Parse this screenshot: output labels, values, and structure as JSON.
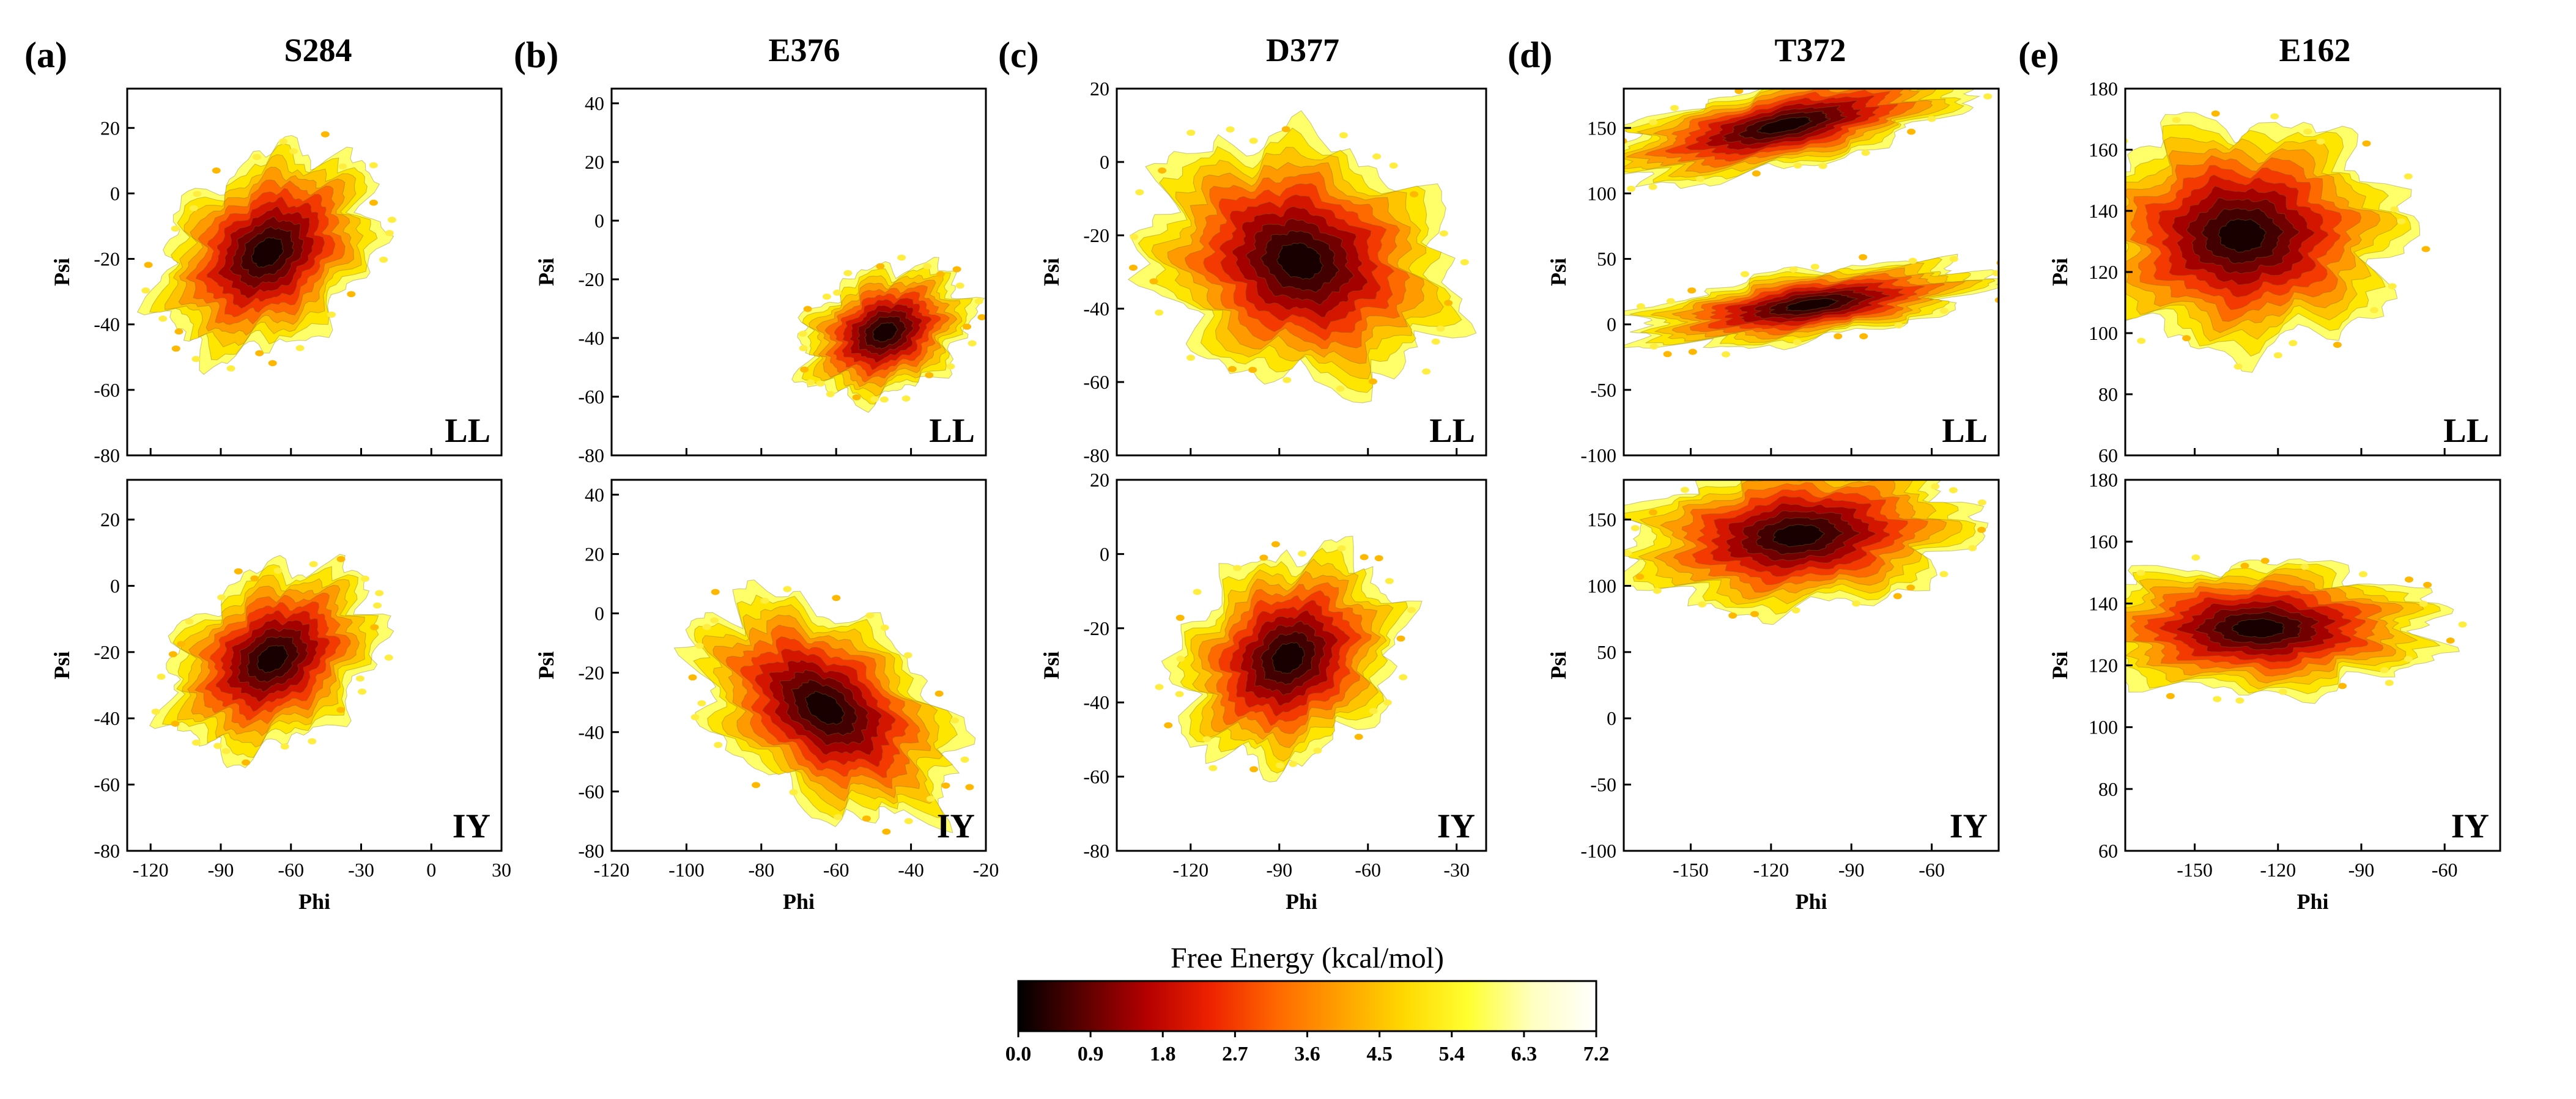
{
  "chart_data": {
    "type": "heatmap",
    "description": "Free energy landscapes (Phi/Psi) for LL and IY variants",
    "colorbar": {
      "title": "Free Energy (kcal/mol)",
      "ticks": [
        "0.0",
        "0.9",
        "1.8",
        "2.7",
        "3.6",
        "4.5",
        "5.4",
        "6.3",
        "7.2"
      ],
      "range": [
        0,
        7.2
      ],
      "colormap": [
        "#000000",
        "#5a0000",
        "#b40000",
        "#ee2200",
        "#ff6600",
        "#ffa000",
        "#ffd800",
        "#ffff30",
        "#ffffc0",
        "#ffffff"
      ]
    },
    "panels": [
      {
        "letter": "(a)",
        "residue": "S284",
        "xlabel": "Phi",
        "ylabel": "Psi",
        "xlim": [
          -130,
          30
        ],
        "xticks": [
          -120,
          -90,
          -60,
          -30,
          0,
          30
        ],
        "xticklabels": [
          "-120",
          "-90",
          "-60",
          "-30",
          "0",
          "30"
        ],
        "subplots": [
          {
            "label": "LL",
            "ylim": [
              -80,
              32
            ],
            "yticks": [
              -80,
              -60,
              -40,
              -20,
              0,
              20
            ],
            "yticklabels": [
              "-80",
              "-60",
              "-40",
              "-20",
              "0",
              "20"
            ],
            "basins": [
              {
                "phi": -70,
                "psi": -18,
                "sphi": 16,
                "spsi": 16,
                "rot": -50,
                "weight": 1
              }
            ]
          },
          {
            "label": "IY",
            "ylim": [
              -80,
              32
            ],
            "yticks": [
              -80,
              -60,
              -40,
              -20,
              0,
              20
            ],
            "yticklabels": [
              "-80",
              "-60",
              "-40",
              "-20",
              "0",
              "20"
            ],
            "basins": [
              {
                "phi": -68,
                "psi": -22,
                "sphi": 15,
                "spsi": 15,
                "rot": -55,
                "weight": 1
              }
            ]
          }
        ]
      },
      {
        "letter": "(b)",
        "residue": "E376",
        "xlabel": "Phi",
        "ylabel": "Psi",
        "xlim": [
          -120,
          -20
        ],
        "xticks": [
          -120,
          -100,
          -80,
          -60,
          -40,
          -20
        ],
        "xticklabels": [
          "-120",
          "-100",
          "-80",
          "-60",
          "-40",
          "-20"
        ],
        "subplots": [
          {
            "label": "LL",
            "ylim": [
              -80,
              45
            ],
            "yticks": [
              -80,
              -60,
              -40,
              -20,
              0,
              20,
              40
            ],
            "yticklabels": [
              "-80",
              "-60",
              "-40",
              "-20",
              "0",
              "20",
              "40"
            ],
            "basins": [
              {
                "phi": -47,
                "psi": -38,
                "sphi": 7,
                "spsi": 13,
                "rot": -65,
                "weight": 1
              }
            ]
          },
          {
            "label": "IY",
            "ylim": [
              -80,
              45
            ],
            "yticks": [
              -80,
              -60,
              -40,
              -20,
              0,
              20,
              40
            ],
            "yticklabels": [
              "-80",
              "-60",
              "-40",
              "-20",
              "0",
              "20",
              "40"
            ],
            "basins": [
              {
                "phi": -63,
                "psi": -32,
                "sphi": 17,
                "spsi": 13,
                "rot": -35,
                "weight": 1
              }
            ]
          }
        ]
      },
      {
        "letter": "(c)",
        "residue": "D377",
        "xlabel": "Phi",
        "ylabel": "Psi",
        "xlim": [
          -145,
          -20
        ],
        "xticks": [
          -120,
          -90,
          -60,
          -30
        ],
        "xticklabels": [
          "-120",
          "-90",
          "-60",
          "-30"
        ],
        "subplots": [
          {
            "label": "LL",
            "ylim": [
              -80,
              20
            ],
            "yticks": [
              -80,
              -60,
              -40,
              -20,
              0,
              20
            ],
            "yticklabels": [
              "-80",
              "-60",
              "-40",
              "-20",
              "0",
              "20"
            ],
            "basins": [
              {
                "phi": -83,
                "psi": -27,
                "sphi": 23,
                "spsi": 14,
                "rot": -20,
                "weight": 1
              }
            ]
          },
          {
            "label": "IY",
            "ylim": [
              -80,
              20
            ],
            "yticks": [
              -80,
              -60,
              -40,
              -20,
              0,
              20
            ],
            "yticklabels": [
              "-80",
              "-60",
              "-40",
              "-20",
              "0",
              "20"
            ],
            "basins": [
              {
                "phi": -87,
                "psi": -28,
                "sphi": 14,
                "spsi": 14,
                "rot": -50,
                "weight": 1
              }
            ]
          }
        ]
      },
      {
        "letter": "(d)",
        "residue": "T372",
        "xlabel": "Phi",
        "ylabel": "Psi",
        "xlim": [
          -175,
          -35
        ],
        "xticks": [
          -150,
          -120,
          -90,
          -60
        ],
        "xticklabels": [
          "-150",
          "-120",
          "-90",
          "-60"
        ],
        "subplots": [
          {
            "label": "LL",
            "ylim": [
              -100,
              180
            ],
            "yticks": [
              -100,
              -50,
              0,
              50,
              100,
              150
            ],
            "yticklabels": [
              "-100",
              "-50",
              "0",
              "50",
              "100",
              "150"
            ],
            "basins": [
              {
                "phi": -115,
                "psi": 152,
                "sphi": 30,
                "spsi": 14,
                "rot": 12,
                "weight": 1
              },
              {
                "phi": -105,
                "psi": 15,
                "sphi": 30,
                "spsi": 12,
                "rot": 8,
                "weight": 0.85
              }
            ]
          },
          {
            "label": "IY",
            "ylim": [
              -100,
              180
            ],
            "yticks": [
              -100,
              -50,
              0,
              50,
              100,
              150
            ],
            "yticklabels": [
              "-100",
              "-50",
              "0",
              "50",
              "100",
              "150"
            ],
            "basins": [
              {
                "phi": -110,
                "psi": 138,
                "sphi": 28,
                "spsi": 24,
                "rot": 5,
                "weight": 1
              }
            ]
          }
        ]
      },
      {
        "letter": "(e)",
        "residue": "E162",
        "xlabel": "Phi",
        "ylabel": "Psi",
        "xlim": [
          -175,
          -40
        ],
        "xticks": [
          -150,
          -120,
          -90,
          -60
        ],
        "xticklabels": [
          "-150",
          "-120",
          "-90",
          "-60"
        ],
        "subplots": [
          {
            "label": "LL",
            "ylim": [
              60,
              180
            ],
            "yticks": [
              60,
              80,
              100,
              120,
              140,
              160,
              180
            ],
            "yticklabels": [
              "60",
              "80",
              "100",
              "120",
              "140",
              "160",
              "180"
            ],
            "basins": [
              {
                "phi": -133,
                "psi": 132,
                "sphi": 25,
                "spsi": 16,
                "rot": 0,
                "weight": 1
              }
            ]
          },
          {
            "label": "IY",
            "ylim": [
              60,
              180
            ],
            "yticks": [
              60,
              80,
              100,
              120,
              140,
              160,
              180
            ],
            "yticklabels": [
              "60",
              "80",
              "100",
              "120",
              "140",
              "160",
              "180"
            ],
            "basins": [
              {
                "phi": -127,
                "psi": 132,
                "sphi": 28,
                "spsi": 9,
                "rot": 0,
                "weight": 1
              }
            ]
          }
        ]
      }
    ]
  }
}
